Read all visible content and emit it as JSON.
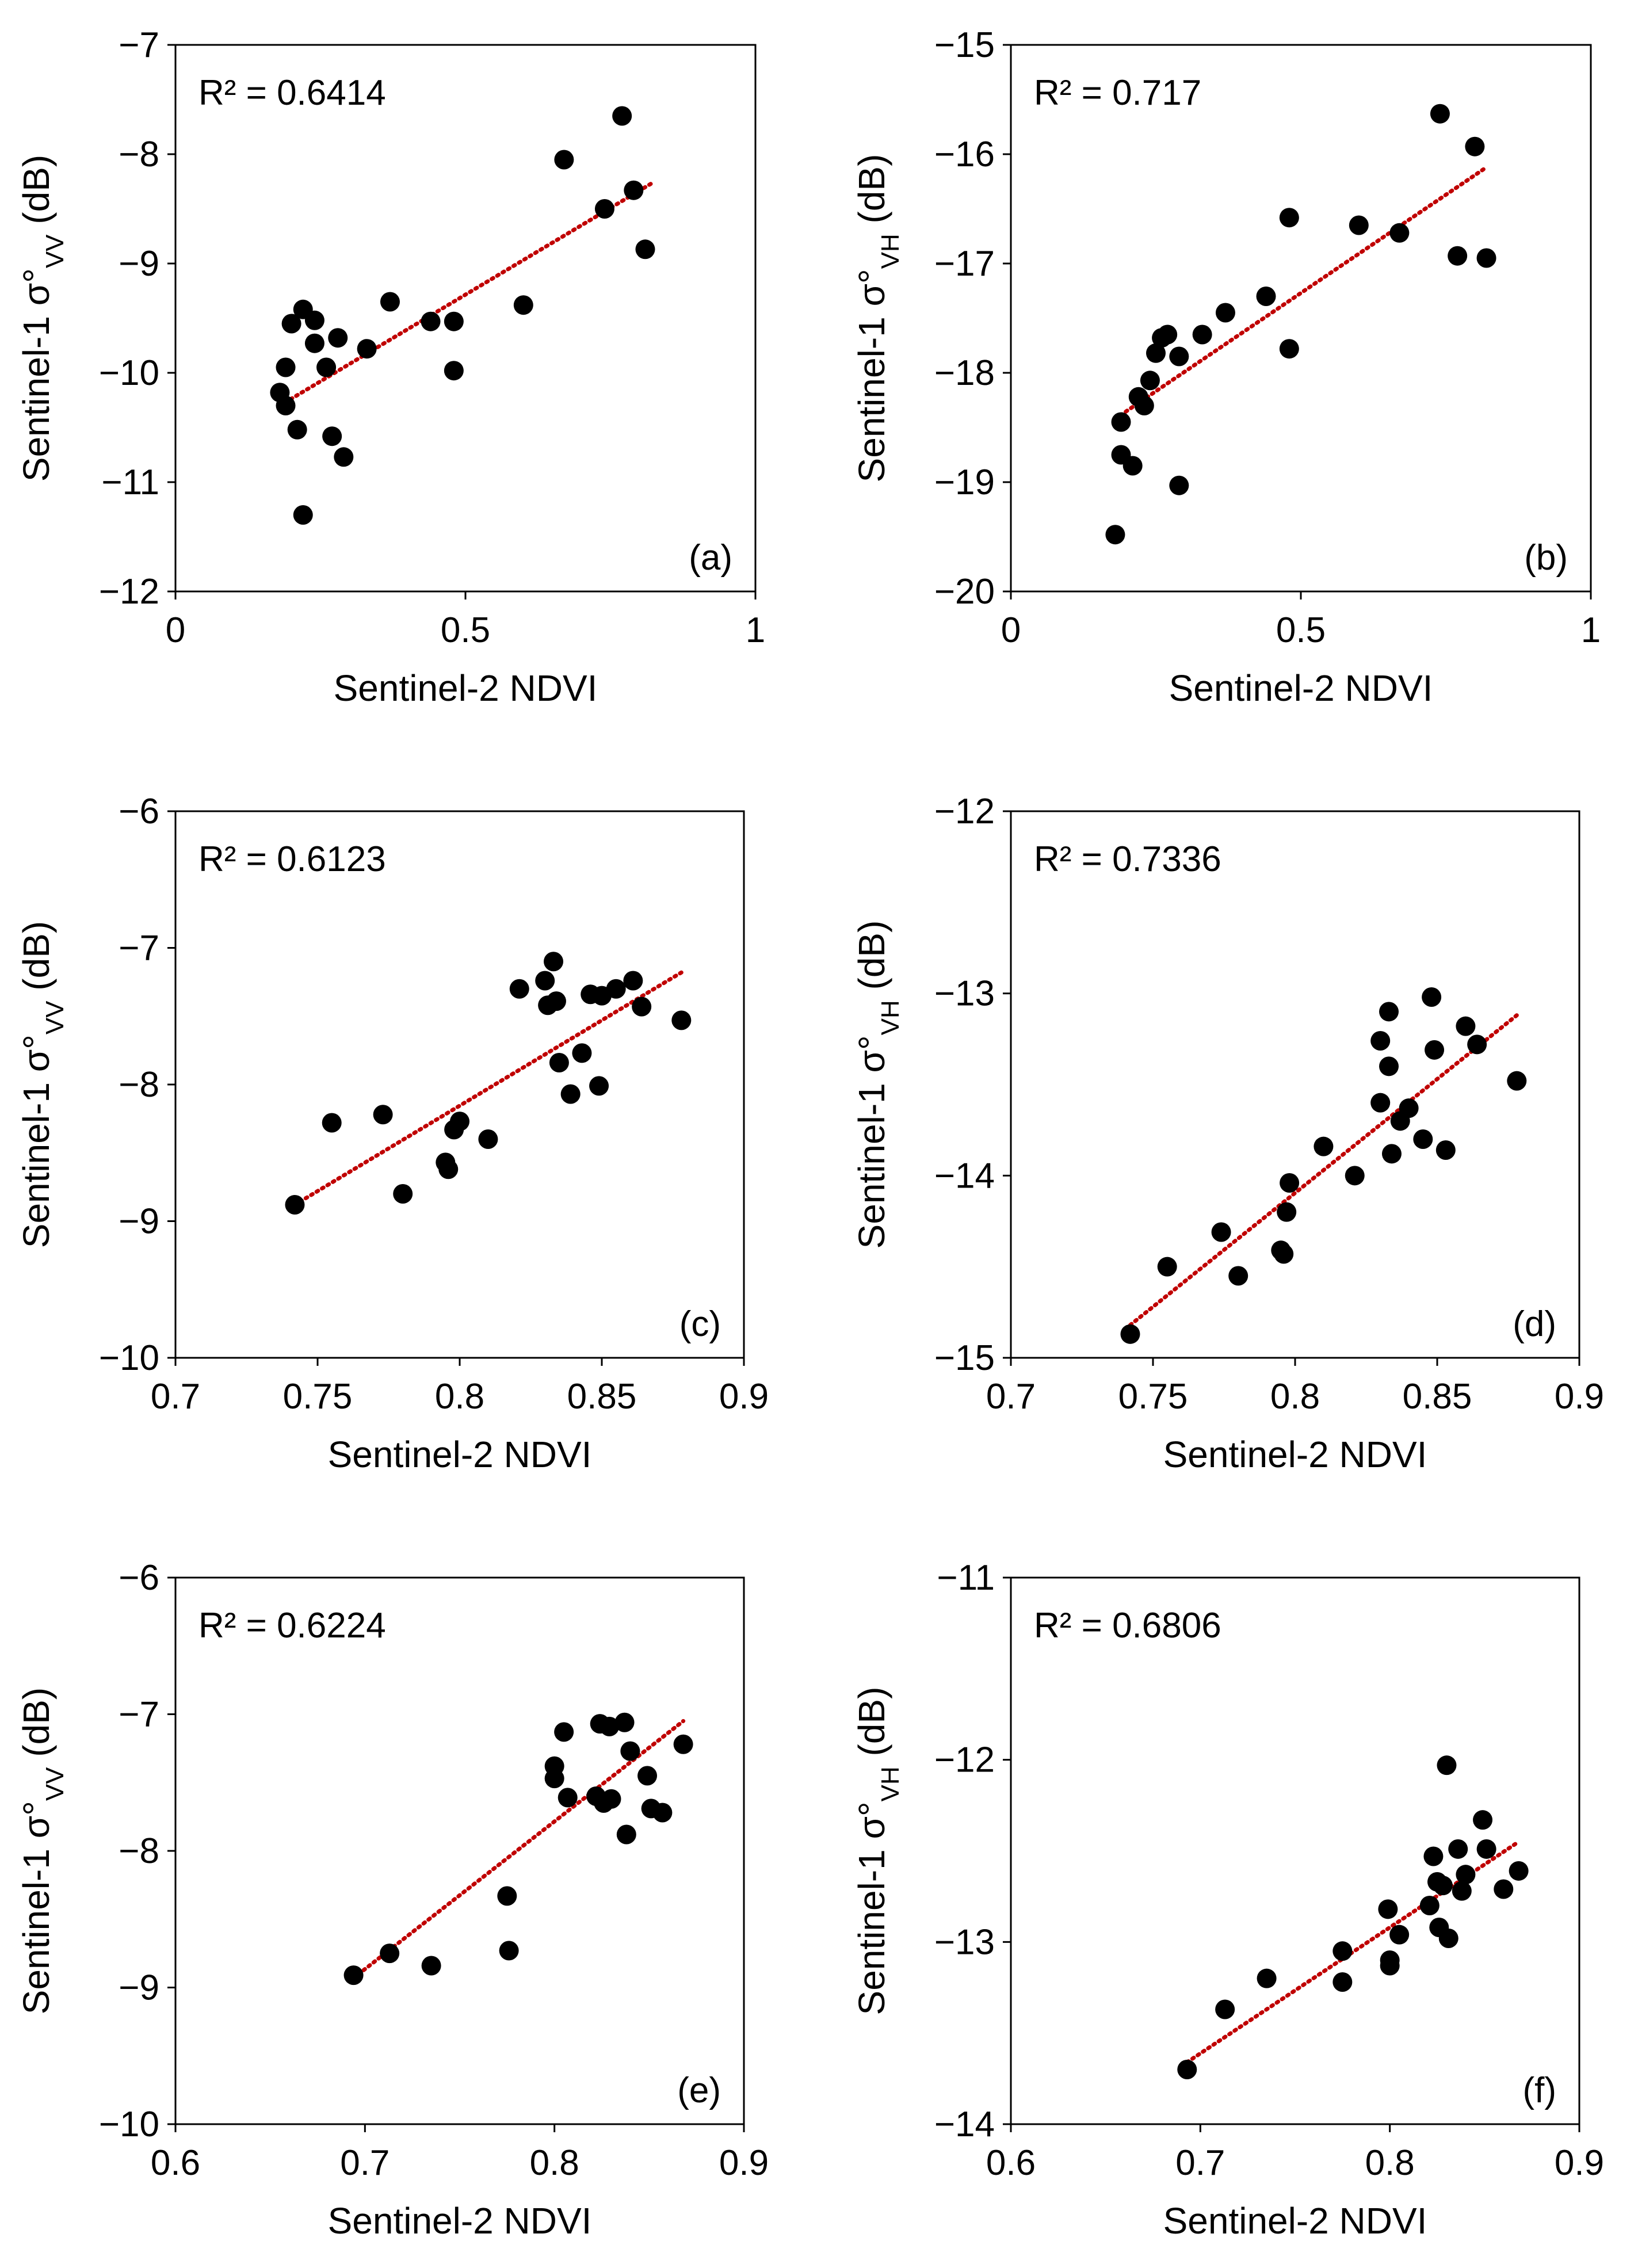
{
  "figure": {
    "point_color": "#000000",
    "trend_color": "#c00000",
    "frame_color": "#000000"
  },
  "chart_data": [
    {
      "type": "scatter",
      "panel": "(a)",
      "r2": "R² = 0.6414",
      "xlabel": "Sentinel-2 NDVI",
      "ylabel_prefix": "Sentinel-1 σ°",
      "ylabel_sub": "VV",
      "ylabel_suffix": " (dB)",
      "xlim": [
        0,
        1
      ],
      "ylim": [
        -12,
        -7
      ],
      "xticks": [
        0,
        0.5,
        1
      ],
      "xtick_labels": [
        "0",
        "0.5",
        "1"
      ],
      "yticks": [
        -12,
        -11,
        -10,
        -9,
        -8,
        -7
      ],
      "ytick_labels": [
        "−12",
        "−11",
        "−10",
        "−9",
        "−8",
        "−7"
      ],
      "points": [
        [
          0.18,
          -10.18
        ],
        [
          0.19,
          -10.3
        ],
        [
          0.19,
          -9.95
        ],
        [
          0.2,
          -9.55
        ],
        [
          0.21,
          -10.52
        ],
        [
          0.22,
          -9.42
        ],
        [
          0.22,
          -11.3
        ],
        [
          0.24,
          -9.52
        ],
        [
          0.24,
          -9.73
        ],
        [
          0.26,
          -9.95
        ],
        [
          0.27,
          -10.58
        ],
        [
          0.28,
          -9.68
        ],
        [
          0.29,
          -10.77
        ],
        [
          0.33,
          -9.78
        ],
        [
          0.37,
          -9.35
        ],
        [
          0.44,
          -9.53
        ],
        [
          0.48,
          -9.53
        ],
        [
          0.48,
          -9.98
        ],
        [
          0.6,
          -9.38
        ],
        [
          0.67,
          -8.05
        ],
        [
          0.74,
          -8.5
        ],
        [
          0.77,
          -7.65
        ],
        [
          0.79,
          -8.33
        ],
        [
          0.81,
          -8.87
        ]
      ],
      "trend": [
        [
          0.18,
          -10.3
        ],
        [
          0.82,
          -8.27
        ]
      ]
    },
    {
      "type": "scatter",
      "panel": "(b)",
      "r2": "R² = 0.717",
      "xlabel": "Sentinel-2 NDVI",
      "ylabel_prefix": "Sentinel-1 σ°",
      "ylabel_sub": "VH",
      "ylabel_suffix": " (dB)",
      "xlim": [
        0,
        1
      ],
      "ylim": [
        -20,
        -15
      ],
      "xticks": [
        0,
        0.5,
        1
      ],
      "xtick_labels": [
        "0",
        "0.5",
        "1"
      ],
      "yticks": [
        -20,
        -19,
        -18,
        -17,
        -16,
        -15
      ],
      "ytick_labels": [
        "−20",
        "−19",
        "−18",
        "−17",
        "−16",
        "−15"
      ],
      "points": [
        [
          0.18,
          -19.48
        ],
        [
          0.19,
          -18.45
        ],
        [
          0.19,
          -18.75
        ],
        [
          0.21,
          -18.85
        ],
        [
          0.22,
          -18.22
        ],
        [
          0.23,
          -18.3
        ],
        [
          0.24,
          -18.07
        ],
        [
          0.25,
          -17.82
        ],
        [
          0.26,
          -17.68
        ],
        [
          0.27,
          -17.65
        ],
        [
          0.29,
          -17.85
        ],
        [
          0.29,
          -19.03
        ],
        [
          0.33,
          -17.65
        ],
        [
          0.37,
          -17.45
        ],
        [
          0.44,
          -17.3
        ],
        [
          0.48,
          -16.58
        ],
        [
          0.48,
          -17.78
        ],
        [
          0.6,
          -16.65
        ],
        [
          0.67,
          -16.72
        ],
        [
          0.74,
          -15.63
        ],
        [
          0.77,
          -16.93
        ],
        [
          0.8,
          -15.93
        ],
        [
          0.82,
          -16.95
        ]
      ],
      "trend": [
        [
          0.18,
          -18.42
        ],
        [
          0.82,
          -16.12
        ]
      ]
    },
    {
      "type": "scatter",
      "panel": "(c)",
      "r2": "R² = 0.6123",
      "xlabel": "Sentinel-2 NDVI",
      "ylabel_prefix": "Sentinel-1 σ°",
      "ylabel_sub": "VV",
      "ylabel_suffix": " (dB)",
      "xlim": [
        0.7,
        0.9
      ],
      "ylim": [
        -10,
        -6
      ],
      "xticks": [
        0.7,
        0.75,
        0.8,
        0.85,
        0.9
      ],
      "xtick_labels": [
        "0.7",
        "0.75",
        "0.8",
        "0.85",
        "0.9"
      ],
      "yticks": [
        -10,
        -9,
        -8,
        -7,
        -6
      ],
      "ytick_labels": [
        "−10",
        "−9",
        "−8",
        "−7",
        "−6"
      ],
      "points": [
        [
          0.742,
          -8.88
        ],
        [
          0.755,
          -8.28
        ],
        [
          0.773,
          -8.22
        ],
        [
          0.78,
          -8.8
        ],
        [
          0.795,
          -8.57
        ],
        [
          0.796,
          -8.62
        ],
        [
          0.798,
          -8.33
        ],
        [
          0.8,
          -8.27
        ],
        [
          0.81,
          -8.4
        ],
        [
          0.821,
          -7.3
        ],
        [
          0.83,
          -7.24
        ],
        [
          0.831,
          -7.42
        ],
        [
          0.833,
          -7.1
        ],
        [
          0.834,
          -7.39
        ],
        [
          0.835,
          -7.84
        ],
        [
          0.839,
          -8.07
        ],
        [
          0.843,
          -7.77
        ],
        [
          0.846,
          -7.34
        ],
        [
          0.849,
          -8.01
        ],
        [
          0.85,
          -7.35
        ],
        [
          0.855,
          -7.3
        ],
        [
          0.861,
          -7.24
        ],
        [
          0.864,
          -7.43
        ],
        [
          0.878,
          -7.53
        ]
      ],
      "trend": [
        [
          0.742,
          -8.88
        ],
        [
          0.878,
          -7.18
        ]
      ]
    },
    {
      "type": "scatter",
      "panel": "(d)",
      "r2": "R² = 0.7336",
      "xlabel": "Sentinel-2 NDVI",
      "ylabel_prefix": "Sentinel-1 σ°",
      "ylabel_sub": "VH",
      "ylabel_suffix": " (dB)",
      "xlim": [
        0.7,
        0.9
      ],
      "ylim": [
        -15,
        -12
      ],
      "xticks": [
        0.7,
        0.75,
        0.8,
        0.85,
        0.9
      ],
      "xtick_labels": [
        "0.7",
        "0.75",
        "0.8",
        "0.85",
        "0.9"
      ],
      "yticks": [
        -15,
        -14,
        -13,
        -12
      ],
      "ytick_labels": [
        "−15",
        "−14",
        "−13",
        "−12"
      ],
      "points": [
        [
          0.742,
          -14.87
        ],
        [
          0.755,
          -14.5
        ],
        [
          0.774,
          -14.31
        ],
        [
          0.78,
          -14.55
        ],
        [
          0.795,
          -14.41
        ],
        [
          0.796,
          -14.43
        ],
        [
          0.797,
          -14.2
        ],
        [
          0.798,
          -14.04
        ],
        [
          0.81,
          -13.84
        ],
        [
          0.821,
          -14.0
        ],
        [
          0.83,
          -13.26
        ],
        [
          0.83,
          -13.6
        ],
        [
          0.833,
          -13.1
        ],
        [
          0.833,
          -13.4
        ],
        [
          0.834,
          -13.88
        ],
        [
          0.837,
          -13.7
        ],
        [
          0.84,
          -13.63
        ],
        [
          0.845,
          -13.8
        ],
        [
          0.848,
          -13.02
        ],
        [
          0.849,
          -13.31
        ],
        [
          0.853,
          -13.86
        ],
        [
          0.86,
          -13.18
        ],
        [
          0.864,
          -13.28
        ],
        [
          0.878,
          -13.48
        ]
      ],
      "trend": [
        [
          0.742,
          -14.82
        ],
        [
          0.878,
          -13.12
        ]
      ]
    },
    {
      "type": "scatter",
      "panel": "(e)",
      "r2": "R² = 0.6224",
      "xlabel": "Sentinel-2 NDVI",
      "ylabel_prefix": "Sentinel-1 σ°",
      "ylabel_sub": "VV",
      "ylabel_suffix": " (dB)",
      "xlim": [
        0.6,
        0.9
      ],
      "ylim": [
        -10,
        -6
      ],
      "xticks": [
        0.6,
        0.7,
        0.8,
        0.9
      ],
      "xtick_labels": [
        "0.6",
        "0.7",
        "0.8",
        "0.9"
      ],
      "yticks": [
        -10,
        -9,
        -8,
        -7,
        -6
      ],
      "ytick_labels": [
        "−10",
        "−9",
        "−8",
        "−7",
        "−6"
      ],
      "points": [
        [
          0.694,
          -8.91
        ],
        [
          0.713,
          -8.75
        ],
        [
          0.735,
          -8.84
        ],
        [
          0.775,
          -8.33
        ],
        [
          0.776,
          -8.73
        ],
        [
          0.8,
          -7.38
        ],
        [
          0.8,
          -7.47
        ],
        [
          0.805,
          -7.13
        ],
        [
          0.807,
          -7.61
        ],
        [
          0.822,
          -7.6
        ],
        [
          0.824,
          -7.07
        ],
        [
          0.826,
          -7.65
        ],
        [
          0.829,
          -7.09
        ],
        [
          0.83,
          -7.62
        ],
        [
          0.837,
          -7.06
        ],
        [
          0.838,
          -7.88
        ],
        [
          0.84,
          -7.27
        ],
        [
          0.849,
          -7.45
        ],
        [
          0.851,
          -7.69
        ],
        [
          0.857,
          -7.72
        ],
        [
          0.868,
          -7.22
        ]
      ],
      "trend": [
        [
          0.694,
          -8.93
        ],
        [
          0.868,
          -7.05
        ]
      ]
    },
    {
      "type": "scatter",
      "panel": "(f)",
      "r2": "R² = 0.6806",
      "xlabel": "Sentinel-2 NDVI",
      "ylabel_prefix": "Sentinel-1 σ°",
      "ylabel_sub": "VH",
      "ylabel_suffix": " (dB)",
      "xlim": [
        0.6,
        0.9
      ],
      "ylim": [
        -14,
        -11
      ],
      "xticks": [
        0.6,
        0.7,
        0.8,
        0.9
      ],
      "xtick_labels": [
        "0.6",
        "0.7",
        "0.8",
        "0.9"
      ],
      "yticks": [
        -14,
        -13,
        -12,
        -11
      ],
      "ytick_labels": [
        "−14",
        "−13",
        "−12",
        "−11"
      ],
      "points": [
        [
          0.693,
          -13.7
        ],
        [
          0.713,
          -13.37
        ],
        [
          0.735,
          -13.2
        ],
        [
          0.775,
          -13.05
        ],
        [
          0.775,
          -13.22
        ],
        [
          0.799,
          -12.82
        ],
        [
          0.8,
          -13.1
        ],
        [
          0.8,
          -13.13
        ],
        [
          0.805,
          -12.96
        ],
        [
          0.821,
          -12.8
        ],
        [
          0.823,
          -12.53
        ],
        [
          0.825,
          -12.67
        ],
        [
          0.826,
          -12.92
        ],
        [
          0.828,
          -12.69
        ],
        [
          0.83,
          -12.03
        ],
        [
          0.831,
          -12.98
        ],
        [
          0.836,
          -12.49
        ],
        [
          0.838,
          -12.72
        ],
        [
          0.84,
          -12.63
        ],
        [
          0.849,
          -12.33
        ],
        [
          0.851,
          -12.49
        ],
        [
          0.86,
          -12.71
        ],
        [
          0.868,
          -12.61
        ]
      ],
      "trend": [
        [
          0.693,
          -13.66
        ],
        [
          0.868,
          -12.45
        ]
      ]
    }
  ]
}
